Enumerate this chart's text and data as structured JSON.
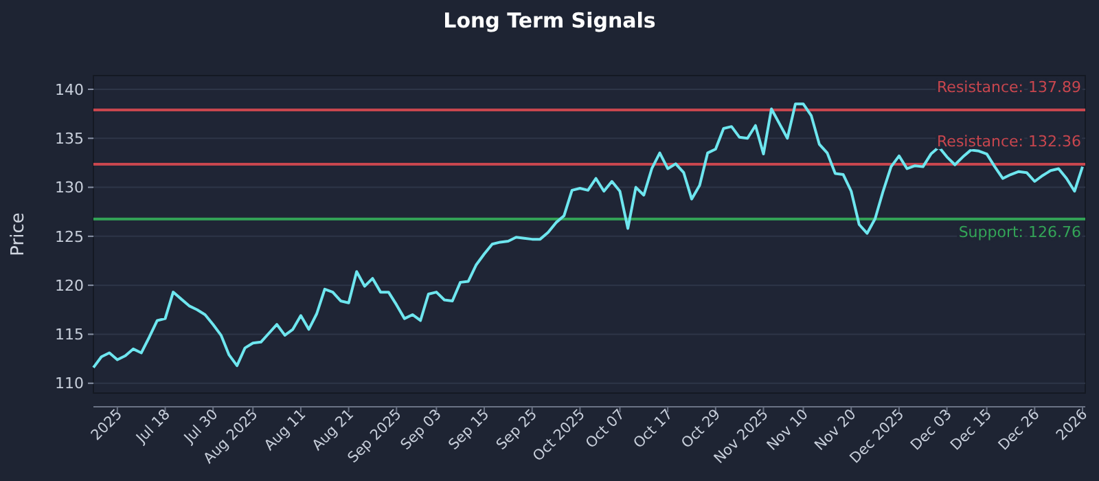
{
  "chart_data": {
    "type": "line",
    "title": "Long Term Signals",
    "ylabel": "Price",
    "categories": [
      null,
      null,
      null,
      "2025",
      null,
      null,
      null,
      null,
      null,
      "Jul 18",
      null,
      null,
      null,
      null,
      null,
      "Jul 30",
      null,
      null,
      null,
      null,
      "Aug 2025",
      null,
      null,
      null,
      null,
      null,
      "Aug 11",
      null,
      null,
      null,
      null,
      null,
      "Aug 21",
      null,
      null,
      null,
      null,
      null,
      "Sep 2025",
      null,
      null,
      null,
      null,
      "Sep 03",
      null,
      null,
      null,
      null,
      null,
      "Sep 15",
      null,
      null,
      null,
      null,
      null,
      "Sep 25",
      null,
      null,
      null,
      null,
      null,
      "Oct 2025",
      null,
      null,
      null,
      null,
      "Oct 07",
      null,
      null,
      null,
      null,
      null,
      "Oct 17",
      null,
      null,
      null,
      null,
      null,
      "Oct 29",
      null,
      null,
      null,
      null,
      null,
      "Nov 2025",
      null,
      null,
      null,
      null,
      "Nov 10",
      null,
      null,
      null,
      null,
      null,
      "Nov 20",
      null,
      null,
      null,
      null,
      null,
      "Dec 2025",
      null,
      null,
      null,
      null,
      null,
      "Dec 03",
      null,
      null,
      null,
      null,
      "Dec 15",
      null,
      null,
      null,
      null,
      null,
      "Dec 26",
      null,
      null,
      null,
      null,
      null,
      "2026"
    ],
    "series": [
      {
        "color": "#6ee6ef",
        "values": [
          111.6,
          112.7,
          113.1,
          112.4,
          112.8,
          113.5,
          113.1,
          114.7,
          116.4,
          116.6,
          119.3,
          118.6,
          117.9,
          117.5,
          117.0,
          116.0,
          114.9,
          112.9,
          111.8,
          113.6,
          114.1,
          114.2,
          115.1,
          116.0,
          114.9,
          115.5,
          116.9,
          115.5,
          117.1,
          119.6,
          119.3,
          118.4,
          118.2,
          121.4,
          119.9,
          120.7,
          119.3,
          119.3,
          118.0,
          116.6,
          117.0,
          116.4,
          119.1,
          119.3,
          118.5,
          118.4,
          120.3,
          120.4,
          122.1,
          123.2,
          124.2,
          124.4,
          124.5,
          124.9,
          124.8,
          124.7,
          124.7,
          125.4,
          126.4,
          127.1,
          129.7,
          129.9,
          129.7,
          130.9,
          129.6,
          130.6,
          129.6,
          125.8,
          130.0,
          129.2,
          131.9,
          133.5,
          131.9,
          132.4,
          131.5,
          128.8,
          130.2,
          133.5,
          133.9,
          136.0,
          136.2,
          135.1,
          135.0,
          136.3,
          133.4,
          138.0,
          136.5,
          135.0,
          138.5,
          138.5,
          137.3,
          134.4,
          133.5,
          131.4,
          131.3,
          129.6,
          126.2,
          125.3,
          126.8,
          129.6,
          132.1,
          133.2,
          131.9,
          132.2,
          132.1,
          133.4,
          134.1,
          133.1,
          132.3,
          133.1,
          133.8,
          133.7,
          133.4,
          132.1,
          130.9,
          131.3,
          131.6,
          131.5,
          130.6,
          131.2,
          131.7,
          131.9,
          130.9,
          129.6,
          132.1
        ]
      }
    ],
    "ylim": [
      109,
      141.4
    ],
    "yticks": [
      110,
      115,
      120,
      125,
      130,
      135,
      140
    ],
    "grid": "y",
    "ref_lines": [
      {
        "axis": "y",
        "value": 137.89,
        "label": "Resistance: 137.89",
        "color": "#c8464e"
      },
      {
        "axis": "y",
        "value": 132.36,
        "label": "Resistance: 132.36",
        "color": "#c8464e"
      },
      {
        "axis": "y",
        "value": 126.76,
        "label": "Support: 126.76",
        "color": "#33a457"
      }
    ]
  }
}
